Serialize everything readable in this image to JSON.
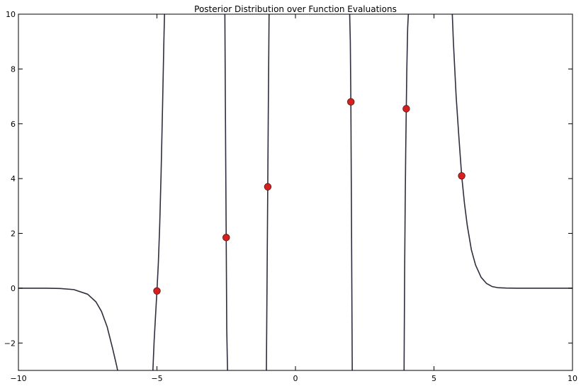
{
  "chart_data": {
    "type": "line",
    "title": "Posterior Distribution over Function Evaluations",
    "xlabel": "",
    "ylabel": "",
    "xlim": [
      -10,
      10
    ],
    "ylim": [
      -3,
      10
    ],
    "x_ticks": [
      -10,
      -5,
      0,
      5,
      10
    ],
    "y_ticks": [
      -2,
      0,
      2,
      4,
      6,
      8,
      10
    ],
    "x_tick_labels": [
      "−10",
      "−5",
      "0",
      "5",
      "10"
    ],
    "y_tick_labels": [
      "−2",
      "0",
      "2",
      "4",
      "6",
      "8",
      "10"
    ],
    "grid": false,
    "legend": "none",
    "line_color": "#2e2e3e",
    "marker_color": "#d62020",
    "marker_edge_color": "#5a1010",
    "curve": {
      "x": [
        -10,
        -9,
        -8.5,
        -8,
        -7.5,
        -7.2,
        -7,
        -6.8,
        -6.6,
        -6.45,
        -6.4,
        -5.15,
        -5.1,
        -5.05,
        -5.0,
        -4.95,
        -4.9,
        -4.85,
        -4.8,
        -4.75,
        -4.72,
        -2.55,
        -2.52,
        -2.5,
        -2.48,
        -2.45,
        -1.05,
        -1.02,
        -1.0,
        -0.98,
        -0.95,
        1.95,
        1.98,
        2.0,
        2.02,
        2.05,
        3.92,
        3.94,
        3.96,
        3.98,
        4.0,
        4.02,
        4.05,
        4.08,
        4.12,
        5.65,
        5.7,
        5.8,
        5.9,
        6.0,
        6.1,
        6.2,
        6.35,
        6.5,
        6.7,
        6.9,
        7.1,
        7.3,
        7.6,
        8.0,
        9.0,
        10.0
      ],
      "y": [
        0,
        0,
        -0.01,
        -0.05,
        -0.22,
        -0.5,
        -0.85,
        -1.4,
        -2.2,
        -2.85,
        -3.1,
        -3.1,
        -1.9,
        -1.0,
        -0.1,
        0.9,
        2.3,
        4.2,
        6.5,
        9.0,
        10.3,
        10.3,
        5.0,
        1.85,
        -1.5,
        -3.1,
        -3.1,
        1.0,
        3.7,
        6.5,
        10.3,
        10.3,
        9.0,
        6.8,
        3.0,
        -3.1,
        -3.1,
        0.5,
        3.0,
        5.0,
        6.55,
        8.0,
        9.5,
        10.1,
        10.3,
        10.3,
        9.0,
        7.0,
        5.5,
        4.1,
        3.1,
        2.3,
        1.4,
        0.85,
        0.4,
        0.17,
        0.06,
        0.02,
        0.005,
        0,
        0,
        0
      ]
    },
    "points": {
      "x": [
        -5,
        -2.5,
        -1,
        2,
        4,
        6
      ],
      "y": [
        -0.1,
        1.85,
        3.7,
        6.8,
        6.55,
        4.1
      ]
    }
  }
}
